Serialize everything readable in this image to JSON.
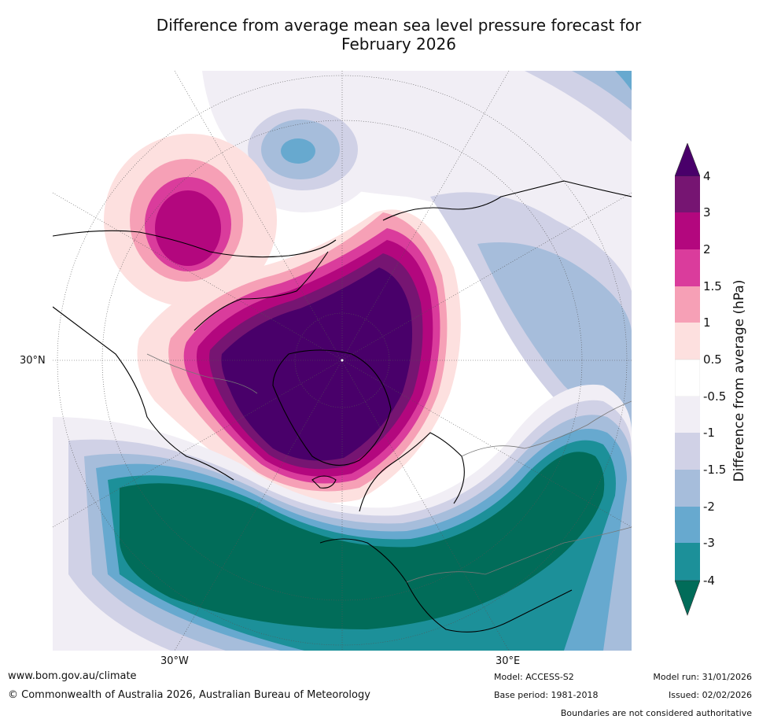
{
  "title_line1": "Difference from average mean sea level pressure forecast for",
  "title_line2": "February 2026",
  "map": {
    "lat_label": "30°N",
    "lon_labels": [
      "30°W",
      "30°E"
    ]
  },
  "colorbar": {
    "label": "Difference from average (hPa)",
    "ticks": [
      "4",
      "3",
      "2",
      "1.5",
      "1",
      "0.5",
      "-0.5",
      "-1",
      "-1.5",
      "-2",
      "-3",
      "-4"
    ],
    "bands": [
      {
        "range": "3 to 4",
        "color": "#761572"
      },
      {
        "range": "2 to 3",
        "color": "#b3077e"
      },
      {
        "range": "1.5 to 2",
        "color": "#da3c9c"
      },
      {
        "range": "1 to 1.5",
        "color": "#f6a0b6"
      },
      {
        "range": "0.5 to 1",
        "color": "#fde0df"
      },
      {
        "range": "-0.5 to 0.5",
        "color": "#ffffff"
      },
      {
        "range": "-1 to -0.5",
        "color": "#f1eef5"
      },
      {
        "range": "-1.5 to -1",
        "color": "#d0d1e6"
      },
      {
        "range": "-2 to -1.5",
        "color": "#a6bddb"
      },
      {
        "range": "-3 to -2",
        "color": "#67a9cf"
      },
      {
        "range": "-4 to -3",
        "color": "#1c9099"
      }
    ],
    "over_color": "#49006a",
    "under_color": "#016c59"
  },
  "footer": {
    "website": "www.bom.gov.au/climate",
    "copyright": "© Commonwealth of Australia 2026, Australian Bureau of Meteorology",
    "model": "Model: ACCESS-S2",
    "base_period": "Base period: 1981-2018",
    "model_run": "Model run: 31/01/2026",
    "issued": "Issued: 02/02/2026",
    "disclaimer": "Boundaries are not considered authoritative"
  }
}
